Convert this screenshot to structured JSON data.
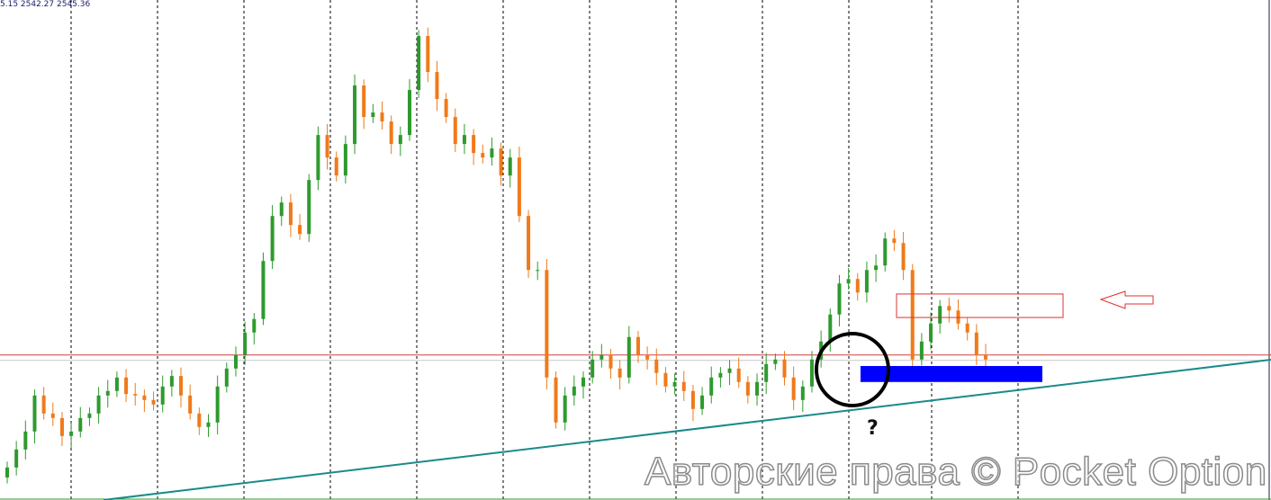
{
  "header": {
    "ohlc_text": "5.15 2542.27 2545.36"
  },
  "watermark": "Авторские права © Pocket Option",
  "annotation_question": "?",
  "colors": {
    "bull": "#2e9a2e",
    "bear": "#f07a1a",
    "trendline": "#1a8a8a",
    "support_zone": "#0000ff",
    "resistance_zone": "#e03030",
    "level_line": "#d04040",
    "grid": "#000000"
  },
  "chart_data": {
    "type": "candlestick",
    "title": "",
    "xlabel": "",
    "ylabel": "",
    "ylim": [
      0,
      100
    ],
    "grid": "vertical dashed",
    "closes": [
      6.5,
      10.1,
      13.7,
      20.9,
      17.3,
      16.4,
      12.8,
      13.7,
      16.4,
      17.3,
      20.9,
      21.8,
      24.5,
      21.2,
      20.9,
      20,
      19.1,
      22.7,
      24.8,
      20.9,
      17.3,
      14.6,
      15.5,
      22.7,
      26.3,
      29,
      33.5,
      36.2,
      47.8,
      56.8,
      59.5,
      55,
      53.2,
      64,
      73,
      68.5,
      64.9,
      71.2,
      82.9,
      76.6,
      77.5,
      75.7,
      71.2,
      73,
      82,
      92.8,
      85.6,
      80.2,
      76.6,
      71.2,
      73,
      69.4,
      68.5,
      70.3,
      64.9,
      68.5,
      56.8,
      46,
      46,
      24.5,
      15.5,
      20.9,
      22.7,
      24.5,
      28.1,
      29,
      26.3,
      24.5,
      32.6,
      29,
      28.1,
      25.4,
      22.7,
      23.6,
      21.8,
      18.2,
      20.9,
      24.5,
      25.4,
      26.3,
      23.6,
      20.9,
      23.6,
      27.2,
      28.1,
      24.5,
      20,
      22.7,
      28.1,
      31.7,
      37.1,
      43.3,
      44.2,
      41.5,
      46,
      46.9,
      52.3,
      51.4,
      46,
      28.1,
      31.7,
      35.3,
      38.8,
      37.9,
      35.3,
      33.5,
      29,
      28.1
    ],
    "horizontal_level": 29,
    "support_zone": [
      23.6,
      26.8
    ],
    "resistance_zone": [
      36.5,
      41.2
    ],
    "trendline": "rising"
  }
}
